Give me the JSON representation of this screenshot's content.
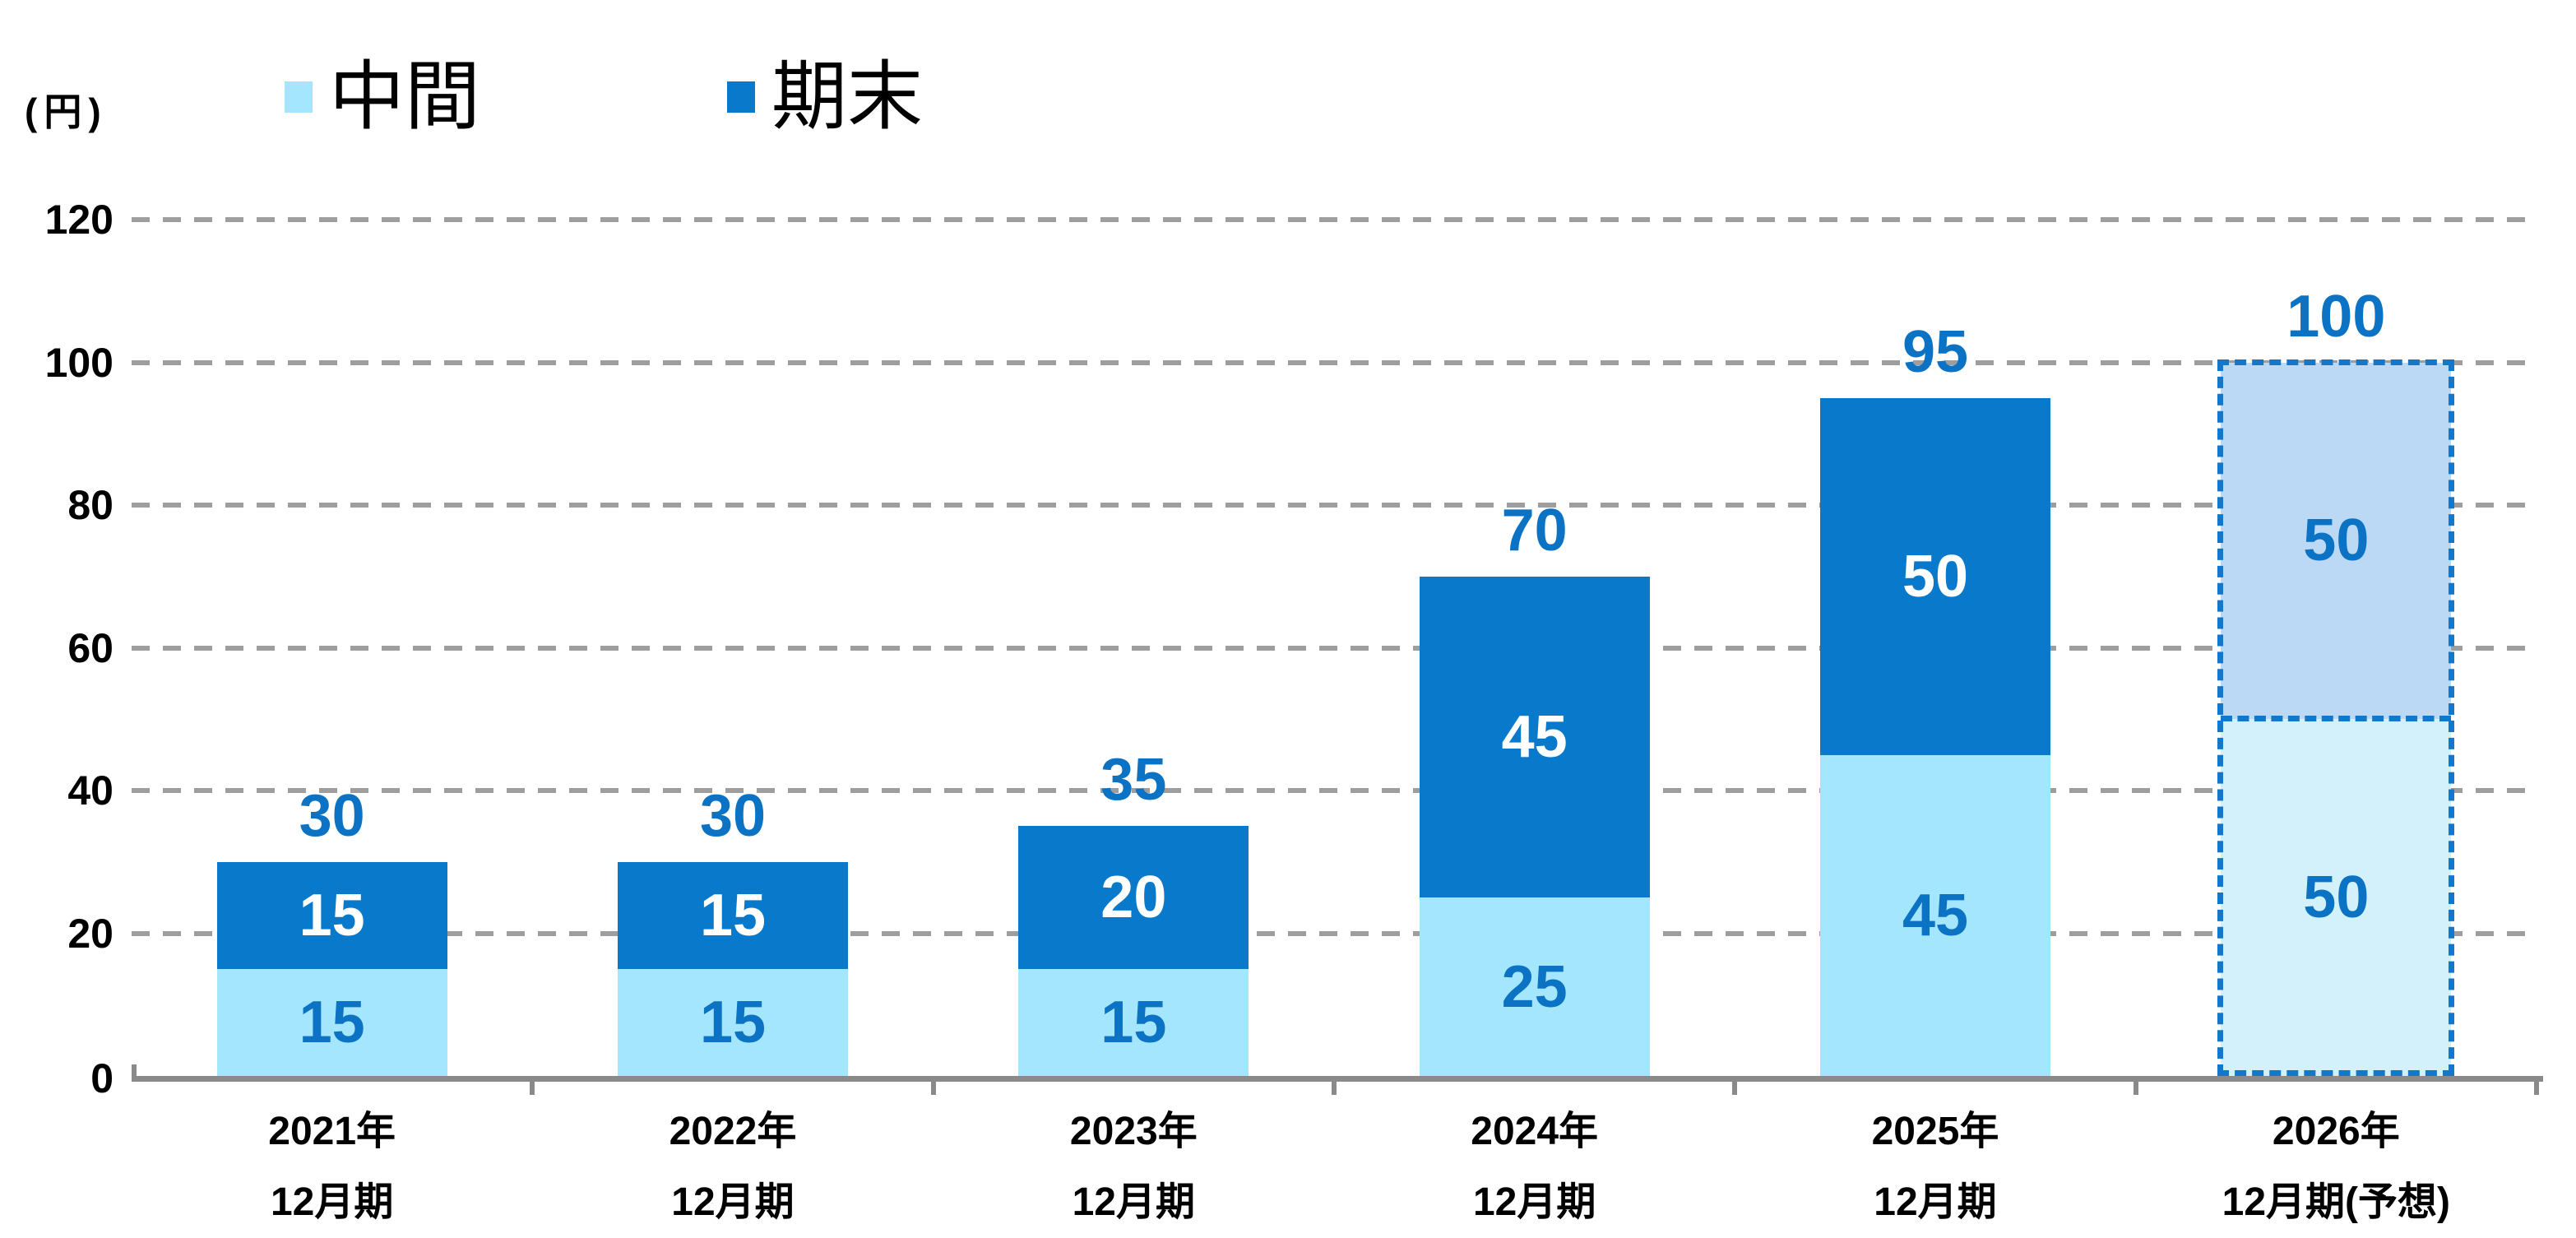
{
  "unit_label": "(円)",
  "legend": [
    {
      "label": "中間"
    },
    {
      "label": "期末"
    }
  ],
  "chart_data": {
    "type": "bar",
    "stacked": true,
    "title": "",
    "ylabel_unit": "(円)",
    "ylim": [
      0,
      120
    ],
    "yticks": [
      0,
      20,
      40,
      60,
      80,
      100,
      120
    ],
    "grid": "horizontal-dashed",
    "legend_position": "top-left",
    "categories": [
      {
        "line1": "2021年",
        "line2": "12月期",
        "forecast": false
      },
      {
        "line1": "2022年",
        "line2": "12月期",
        "forecast": false
      },
      {
        "line1": "2023年",
        "line2": "12月期",
        "forecast": false
      },
      {
        "line1": "2024年",
        "line2": "12月期",
        "forecast": false
      },
      {
        "line1": "2025年",
        "line2": "12月期",
        "forecast": false
      },
      {
        "line1": "2026年",
        "line2": "12月期(予想)",
        "forecast": true
      }
    ],
    "series": [
      {
        "name": "中間",
        "values": [
          15,
          15,
          15,
          25,
          45,
          50
        ]
      },
      {
        "name": "期末",
        "values": [
          15,
          15,
          20,
          45,
          50,
          50
        ]
      }
    ],
    "totals": [
      30,
      30,
      35,
      70,
      95,
      100
    ]
  },
  "colors": {
    "interim_fill": "#A3E6FD",
    "final_fill": "#0879CB",
    "interim_forecast_fill": "#D2F1FB",
    "final_forecast_fill": "#BBD9F4",
    "forecast_border": "#1377CC",
    "value_blue": "#0B72C4",
    "value_white": "#FFFFFF",
    "gridline": "#9E9E9E",
    "axis": "#8A8A8A",
    "text": "#000000"
  }
}
